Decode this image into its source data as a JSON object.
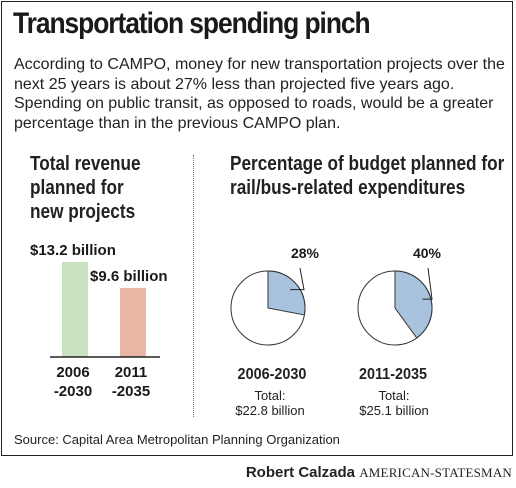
{
  "title": "Transportation spending pinch",
  "intro": "According to CAMPO, money for new transportation projects over the next 25 years is about 27% less than projected five years ago. Spending on public transit, as opposed to roads, would be a greater percentage than in the previous CAMPO plan.",
  "source": "Source: Capital Area Metropolitan Planning Organization",
  "credit": {
    "name": "Robert Calzada",
    "org": "AMERICAN-STATESMAN"
  },
  "chart_data": [
    {
      "type": "bar",
      "title_lines": [
        "Total revenue",
        "planned for",
        "new projects"
      ],
      "categories": [
        [
          "2006",
          "-2030"
        ],
        [
          "2011",
          "-2035"
        ]
      ],
      "values": [
        13.2,
        9.6
      ],
      "value_labels": [
        "$13.2 billion",
        "$9.6 billion"
      ],
      "unit": "billion dollars",
      "colors": [
        "#c9e3c1",
        "#e8b7a6"
      ]
    },
    {
      "type": "pie",
      "title_lines": [
        "Percentage of budget planned for",
        "rail/bus-related expenditures"
      ],
      "pies": [
        {
          "period": "2006-2030",
          "percent": 28,
          "label": "28%",
          "total_lines": [
            "Total:",
            "$22.8 billion"
          ]
        },
        {
          "period": "2011-2035",
          "percent": 40,
          "label": "40%",
          "total_lines": [
            "Total:",
            "$25.1 billion"
          ]
        }
      ],
      "colors": {
        "slice": "#a9c2de",
        "rest": "#ffffff",
        "stroke": "#333333"
      }
    }
  ]
}
